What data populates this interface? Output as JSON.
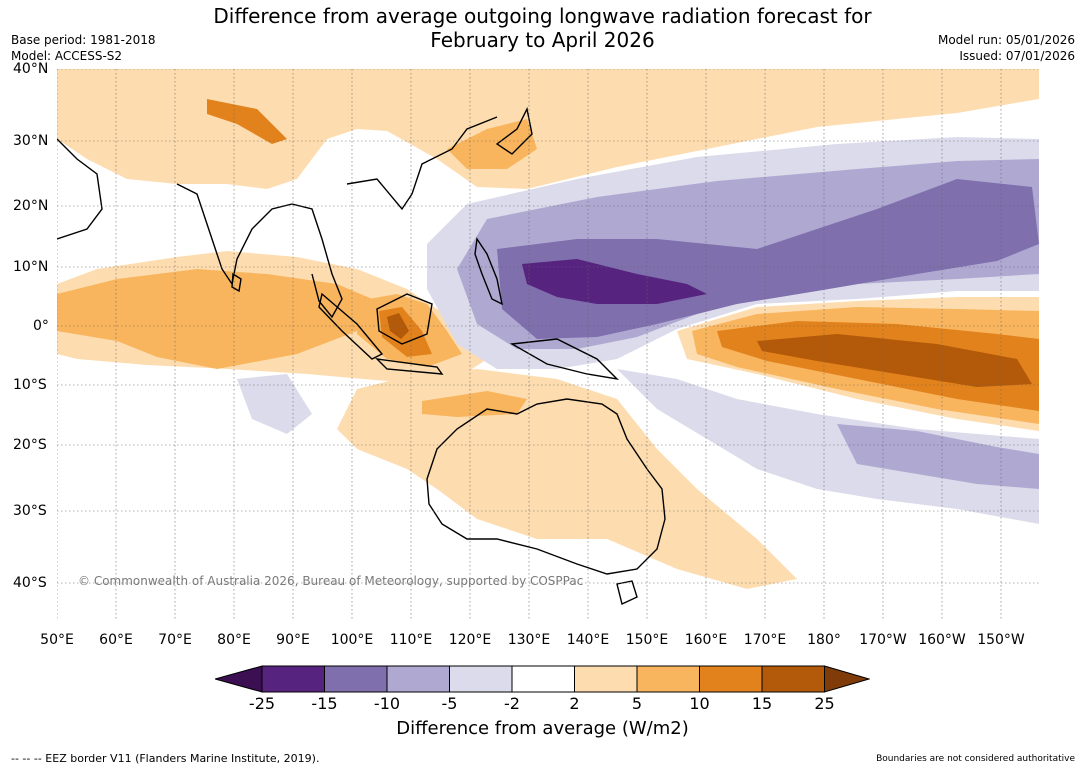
{
  "title_line1": "Difference from average outgoing longwave radiation forecast for",
  "title_line2": "February to April 2026",
  "base_period": "Base period: 1981-2018",
  "model": "Model: ACCESS-S2",
  "model_run": "Model run: 05/01/2026",
  "issued": "Issued: 07/01/2026",
  "lat_labels": [
    "40°N",
    "30°N",
    "20°N",
    "10°N",
    "0°",
    "10°S",
    "20°S",
    "30°S",
    "40°S"
  ],
  "lon_labels": [
    "50°E",
    "60°E",
    "70°E",
    "80°E",
    "90°E",
    "100°E",
    "110°E",
    "120°E",
    "130°E",
    "140°E",
    "150°E",
    "160°E",
    "170°E",
    "180°",
    "170°W",
    "160°W",
    "150°W"
  ],
  "copyright": "© Commonwealth of Australia 2026, Bureau of Meteorology, supported by COSPPac",
  "colorbar": {
    "ticks": [
      "-25",
      "-15",
      "-10",
      "-5",
      "-2",
      "2",
      "5",
      "10",
      "15",
      "25"
    ],
    "colors": [
      "#3b0f52",
      "#56247f",
      "#7f6fad",
      "#afa9d2",
      "#dcdbeb",
      "#ffffff",
      "#fdddb0",
      "#f9b55e",
      "#e2821c",
      "#b35a0a",
      "#7f3b08"
    ],
    "label": "Difference from average (W/m2)"
  },
  "legend_eez": "--  --  -- EEZ border V11 (Flanders Marine Institute, 2019).",
  "boundaries_note": "Boundaries are not considered authoritative"
}
